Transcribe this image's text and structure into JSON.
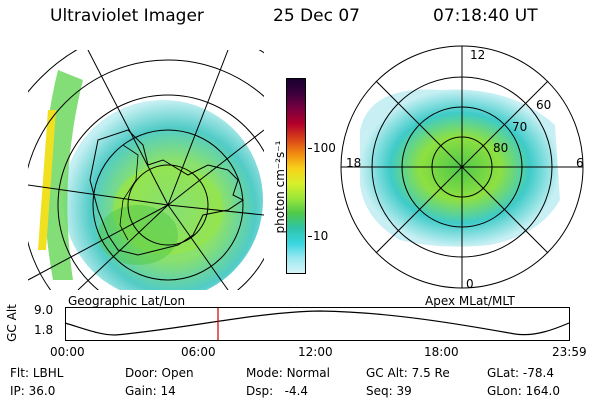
{
  "header": {
    "instrument": "Ultraviolet Imager",
    "date": "25 Dec 07",
    "time": "07:18:40 UT"
  },
  "colorbar": {
    "unit_label": "photon cm⁻²s⁻¹",
    "ticks": [
      "100",
      "10"
    ],
    "colors": [
      "#1a0030",
      "#3d003d",
      "#7a0040",
      "#b3002a",
      "#d9401a",
      "#f08a10",
      "#f7d21a",
      "#d8f02a",
      "#9be63a",
      "#4ec84a",
      "#2ec4a8",
      "#38d6e0",
      "#9ae8f0",
      "#d6f4f8"
    ]
  },
  "panels": {
    "left_label": "Geographic Lat/Lon",
    "right_label": "Apex MLat/MLT",
    "right_mlt_labels": [
      "12",
      "18",
      "6",
      "0"
    ],
    "right_mlat_labels": [
      "60",
      "70",
      "80"
    ]
  },
  "alt_plot": {
    "axis_title": "GC Alt",
    "y_ticks": [
      "9.0",
      "1.8"
    ],
    "x_ticks": [
      "00:00",
      "06:00",
      "12:00",
      "18:00",
      "23:59"
    ],
    "marker_color": "#cc0000"
  },
  "status": {
    "row1": [
      {
        "label": "Flt:",
        "value": "LBHL"
      },
      {
        "label": "Door:",
        "value": "Open"
      },
      {
        "label": "Mode:",
        "value": "Normal"
      },
      {
        "label": "GC Alt:",
        "value": "7.5 Re"
      },
      {
        "label": "GLat:",
        "value": "-78.4"
      }
    ],
    "row2": [
      {
        "label": "IP:",
        "value": "36.0"
      },
      {
        "label": "Gain:",
        "value": "14"
      },
      {
        "label": "Dsp:",
        "value": "-4.4"
      },
      {
        "label": "Seq:",
        "value": "39"
      },
      {
        "label": "GLon:",
        "value": "164.0"
      }
    ]
  }
}
